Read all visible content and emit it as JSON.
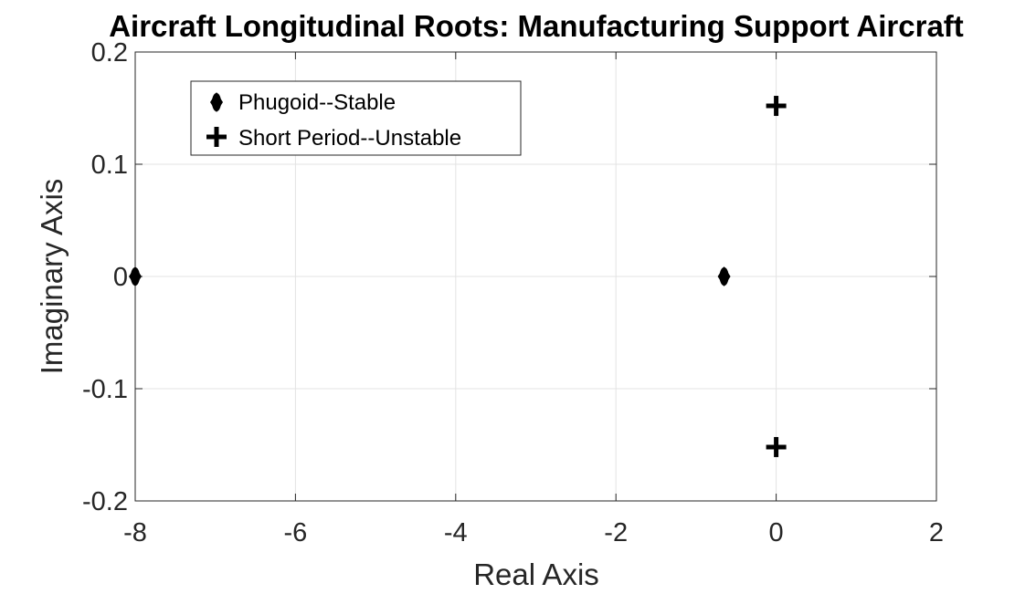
{
  "chart_data": {
    "type": "scatter",
    "title": "Aircraft Longitudinal Roots: Manufacturing Support Aircraft",
    "xlabel": "Real Axis",
    "ylabel": "Imaginary Axis",
    "xlim": [
      -8,
      2
    ],
    "ylim": [
      -0.2,
      0.2
    ],
    "xticks": [
      -8,
      -6,
      -4,
      -2,
      0,
      2
    ],
    "xtick_labels": [
      "-8",
      "-6",
      "-4",
      "-2",
      "0",
      "2"
    ],
    "yticks": [
      -0.2,
      -0.1,
      0,
      0.1,
      0.2
    ],
    "ytick_labels": [
      "-0.2",
      "-0.1",
      "0",
      "0.1",
      "0.2"
    ],
    "grid": true,
    "legend_position": "top-left",
    "series": [
      {
        "name": "Phugoid--Stable",
        "marker": "diamond-icon",
        "color": "#000000",
        "x": [
          -8,
          -0.65
        ],
        "y": [
          0,
          0
        ]
      },
      {
        "name": "Short Period--Unstable",
        "marker": "plus-icon",
        "color": "#000000",
        "x": [
          0,
          0
        ],
        "y": [
          0.152,
          -0.152
        ]
      }
    ]
  }
}
